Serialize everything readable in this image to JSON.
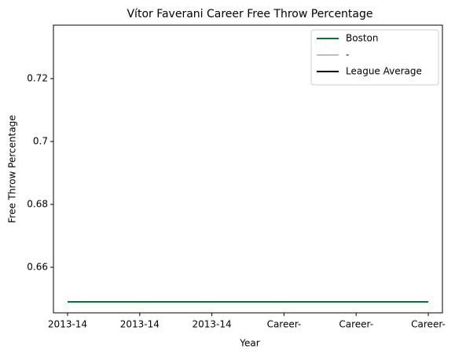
{
  "chart_data": {
    "type": "line",
    "title": "Vítor Faverani Career Free Throw Percentage",
    "xlabel": "Year",
    "ylabel": "Free Throw Percentage",
    "categories": [
      "2013-14",
      "2013-14",
      "2013-14",
      "Career-",
      "Career-",
      "Career-"
    ],
    "series": [
      {
        "name": "Boston",
        "color": "#007a33",
        "values": [
          0.649,
          0.649,
          0.649,
          0.649,
          0.649,
          0.649
        ]
      },
      {
        "name": "-",
        "color": "#c0c0c0",
        "values": [
          null,
          null,
          null,
          null,
          null,
          null
        ]
      },
      {
        "name": "League Average",
        "color": "#000000",
        "values": [
          null,
          null,
          null,
          null,
          null,
          null
        ]
      }
    ],
    "ylim": [
      0.6455,
      0.737
    ],
    "yticks": [
      0.66,
      0.68,
      0.7,
      0.72
    ],
    "grid": false,
    "legend": "upper right"
  }
}
